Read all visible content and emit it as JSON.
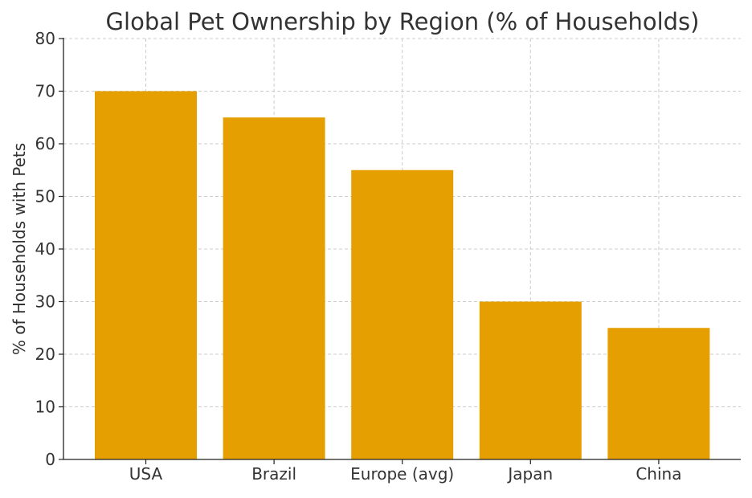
{
  "chart_data": {
    "type": "bar",
    "title": "Global Pet Ownership by Region (% of Households)",
    "xlabel": "",
    "ylabel": "% of Households with Pets",
    "categories": [
      "USA",
      "Brazil",
      "Europe (avg)",
      "Japan",
      "China"
    ],
    "values": [
      70,
      65,
      55,
      30,
      25
    ],
    "ylim": [
      0,
      80
    ],
    "yticks": [
      0,
      10,
      20,
      30,
      40,
      50,
      60,
      70,
      80
    ],
    "grid": true,
    "bar_color": "#E69F00"
  }
}
